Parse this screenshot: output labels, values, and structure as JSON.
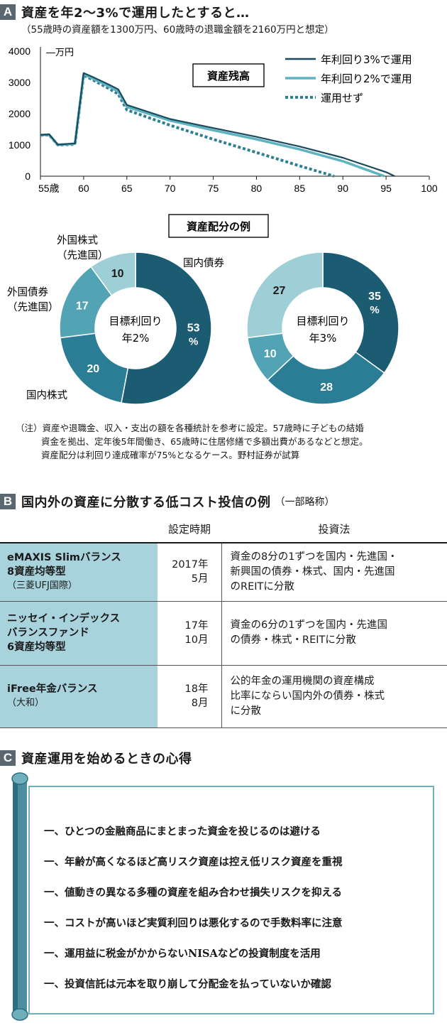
{
  "sectionA": {
    "badge": "A",
    "title": "資産を年2～3%で運用したとすると…",
    "subtitle": "（55歳時の資産額を1300万円、60歳時の退職金額を2160万円と想定）"
  },
  "chart_data": [
    {
      "type": "line",
      "title": "資産残高",
      "ylabel": "万円",
      "xlabel": "",
      "x_tick_labels": [
        "55歳",
        "60",
        "65",
        "70",
        "75",
        "80",
        "85",
        "90",
        "95",
        "100"
      ],
      "x_ticks": [
        55,
        60,
        65,
        70,
        75,
        80,
        85,
        90,
        95,
        100
      ],
      "y_ticks": [
        0,
        1000,
        2000,
        3000,
        4000
      ],
      "xlim": [
        55,
        100
      ],
      "ylim": [
        0,
        4000
      ],
      "legend_position": "top-right",
      "series": [
        {
          "name": "年利回り3%で運用",
          "style": "solid",
          "color": "#1b4a5e",
          "x": [
            55,
            56,
            57,
            58,
            59,
            60,
            61,
            62,
            63,
            64,
            65,
            70,
            75,
            80,
            85,
            90,
            95,
            96
          ],
          "y": [
            1320,
            1340,
            1010,
            1030,
            1050,
            3300,
            3180,
            3050,
            2920,
            2780,
            2280,
            1830,
            1540,
            1260,
            950,
            590,
            130,
            0
          ]
        },
        {
          "name": "年利回り2%で運用",
          "style": "solid",
          "color": "#5fb3c0",
          "x": [
            55,
            56,
            57,
            58,
            59,
            60,
            61,
            62,
            63,
            64,
            65,
            70,
            75,
            80,
            85,
            90,
            94.8
          ],
          "y": [
            1315,
            1330,
            1005,
            1020,
            1040,
            3260,
            3130,
            3000,
            2860,
            2710,
            2220,
            1780,
            1470,
            1180,
            860,
            480,
            0
          ]
        },
        {
          "name": "運用せず",
          "style": "dotted",
          "color": "#2d7f95",
          "x": [
            55,
            56,
            57,
            58,
            59,
            60,
            61,
            62,
            63,
            64,
            65,
            70,
            75,
            80,
            85,
            89
          ],
          "y": [
            1310,
            1320,
            1000,
            1010,
            1020,
            3230,
            3090,
            2940,
            2790,
            2630,
            2120,
            1630,
            1180,
            760,
            330,
            0
          ]
        }
      ]
    },
    {
      "type": "pie",
      "title": "資産配分の例",
      "center_label": [
        "目標利回り",
        "年2%"
      ],
      "slices": [
        {
          "label": "国内債券",
          "value": 53,
          "display": "53",
          "unit": "%",
          "color": "#1c5c73"
        },
        {
          "label": "国内株式",
          "value": 20,
          "display": "20",
          "unit": "",
          "color": "#2b7d95"
        },
        {
          "label": "外国債券\n（先進国）",
          "value": 17,
          "display": "17",
          "unit": "",
          "color": "#52a3b3"
        },
        {
          "label": "外国株式\n（先進国）",
          "value": 10,
          "display": "10",
          "unit": "",
          "color": "#9fcfd6"
        }
      ]
    },
    {
      "type": "pie",
      "title": "",
      "center_label": [
        "目標利回り",
        "年3%"
      ],
      "slices": [
        {
          "label": "国内債券",
          "value": 35,
          "display": "35",
          "unit": "%",
          "color": "#1c5c73"
        },
        {
          "label": "国内株式",
          "value": 28,
          "display": "28",
          "unit": "",
          "color": "#2b7d95"
        },
        {
          "label": "外国債券（先進国）",
          "value": 10,
          "display": "10",
          "unit": "",
          "color": "#52a3b3"
        },
        {
          "label": "外国株式（先進国）",
          "value": 27,
          "display": "27",
          "unit": "",
          "color": "#9fcfd6"
        }
      ]
    }
  ],
  "note": {
    "lines": [
      "（注）資産や退職金、収入・支出の額を各種統計を参考に設定。57歳時に子どもの結婚",
      "資金を拠出、定年後5年間働き、65歳時に住居修繕で多額出費があるなどと想定。",
      "資産配分は利回り達成確率が75%となるケース。野村証券が試算"
    ]
  },
  "sectionB": {
    "badge": "B",
    "title": "国内外の資産に分散する低コスト投信の例",
    "title_note": "（一部略称）",
    "headers": [
      "",
      "設定時期",
      "投資法"
    ],
    "rows": [
      {
        "name_lines": [
          "eMAXIS Slimバランス",
          "8資産均等型"
        ],
        "sub": "（三菱UFJ国際）",
        "date_lines": [
          "2017年",
          "5月"
        ],
        "desc_lines": [
          "資金の8分の1ずつを国内・先進国・",
          "新興国の債券・株式、国内・先進国",
          "のREITに分散"
        ]
      },
      {
        "name_lines": [
          "ニッセイ・インデックス",
          "バランスファンド",
          "6資産均等型"
        ],
        "sub": "",
        "date_lines": [
          "17年",
          "10月"
        ],
        "desc_lines": [
          "資金の6分の1ずつを国内・先進国",
          "の債券・株式・REITに分散"
        ]
      },
      {
        "name_lines": [
          "iFree年金バランス"
        ],
        "sub": "（大和）",
        "date_lines": [
          "18年",
          "8月"
        ],
        "desc_lines": [
          "公的年金の運用機関の資産構成",
          "比率にならい国内外の債券・株式",
          "に分散"
        ]
      }
    ]
  },
  "sectionC": {
    "badge": "C",
    "title": "資産運用を始めるときの心得",
    "rules": [
      "一、ひとつの金融商品にまとまった資金を投じるのは避ける",
      "一、年齢が高くなるほど高リスク資産は控え低リスク資産を重視",
      "一、値動きの異なる多種の資産を組み合わせ損失リスクを抑える",
      "一、コストが高いほど実質利回りは悪化するので手数料率に注意",
      "一、運用益に税金がかからないNISAなどの投資制度を活用",
      "一、投資信託は元本を取り崩して分配金を払っていないか確認"
    ]
  },
  "colors": {
    "badge_bg": "#5a6670",
    "table_name_bg": "#a8d3dc",
    "scroll_border": "#6fb0bc"
  }
}
